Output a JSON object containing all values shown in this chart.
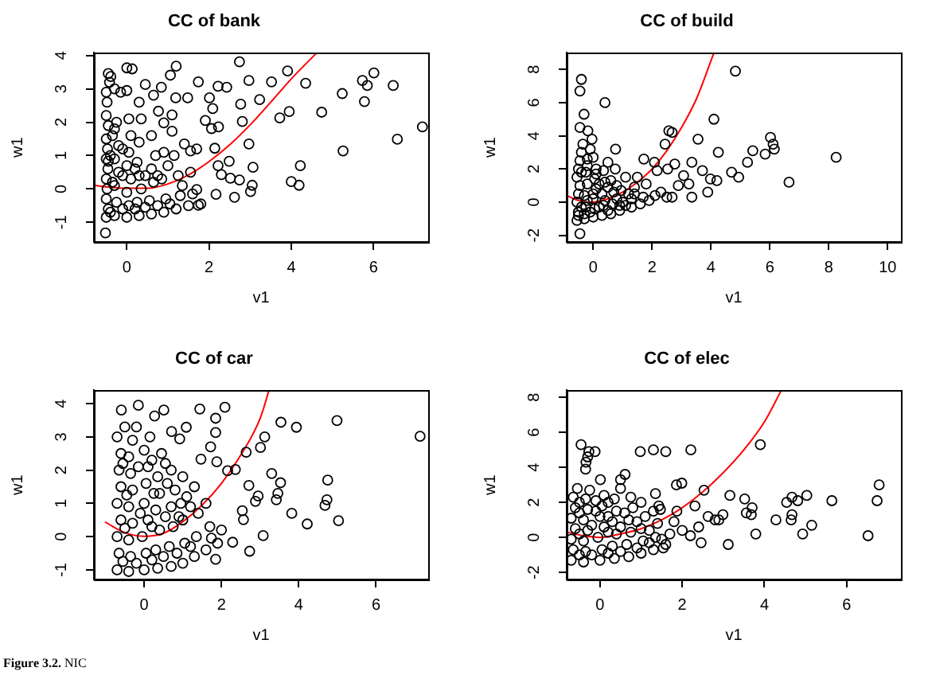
{
  "chart_data": [
    {
      "type": "scatter",
      "title": "CC of bank",
      "xlabel": "v1",
      "ylabel": "w1",
      "xlim": [
        -0.8,
        7.33
      ],
      "ylim": [
        -1.59,
        4.08
      ],
      "xticks": [
        0,
        2,
        4,
        6
      ],
      "yticks": [
        -1,
        0,
        1,
        2,
        3,
        4
      ],
      "grid": false,
      "series": [
        {
          "type": "scatter",
          "color": "#000000",
          "marker": "circle",
          "x": [
            7.19,
            6.58,
            6.01,
            5.73,
            5.85,
            5.78,
            6.48,
            5.24,
            5.26,
            4.74,
            4.35,
            3.91,
            3.95,
            3.72,
            4.22,
            4.0,
            4.19,
            3.52,
            3.23,
            2.97,
            2.74,
            2.77,
            2.81,
            2.97,
            3.07,
            3.05,
            3.01,
            2.62,
            2.74,
            2.49,
            2.52,
            2.3,
            2.17,
            2.22,
            2.14,
            2.43,
            2.22,
            2.09,
            2.01,
            1.91,
            2.23,
            2.06,
            1.74,
            1.7,
            1.55,
            1.74,
            1.48,
            1.19,
            1.2,
            1.06,
            1.1,
            0.84,
            1.1,
            0.77,
            0.9,
            0.65,
            0.45,
            0.13,
            0.0,
            -0.39,
            -0.45,
            -0.52,
            -0.45,
            -0.5,
            -0.45,
            -0.5,
            -0.48,
            -0.5,
            -0.46,
            -0.5,
            -0.47,
            -0.5,
            -0.45,
            -0.5,
            -0.48,
            -0.5,
            -0.42,
            -0.3,
            -0.25,
            -0.3,
            -0.2,
            -0.3,
            -0.2,
            -0.3,
            -0.25,
            -0.15,
            -0.3,
            0,
            0.05,
            0,
            0.1,
            0,
            0.05,
            0.1,
            0.05,
            0.0,
            0.3,
            0.25,
            0.35,
            0.3,
            0.25,
            0.3,
            0.35,
            0.3,
            0.6,
            0.55,
            0.65,
            0.6,
            0.7,
            0.6,
            0.9,
            0.95,
            0.85,
            1.0,
            0.9,
            1.2,
            1.3,
            1.25,
            1.15,
            1.4,
            1.5,
            1.6,
            1.55,
            1.7,
            1.8,
            -0.4,
            -0.35,
            -0.4,
            -0.1,
            -0.1,
            -0.1,
            0.2,
            0.2,
            0.45,
            0.45,
            0.75,
            0.75,
            1.05,
            1.35,
            -0.35
          ],
          "values": [
            1.86,
            1.49,
            3.48,
            3.25,
            3.1,
            2.62,
            3.1,
            2.86,
            1.14,
            2.3,
            3.17,
            3.54,
            2.32,
            2.13,
            0.7,
            0.22,
            0.11,
            3.21,
            2.68,
            3.25,
            3.81,
            2.54,
            2.02,
            1.35,
            0.65,
            0.11,
            -0.08,
            -0.25,
            0.27,
            0.83,
            0.32,
            0.43,
            -0.16,
            0.7,
            1.22,
            3.05,
            3.08,
            2.41,
            2.73,
            2.05,
            1.86,
            1.81,
            -0.49,
            -0.02,
            1.14,
            3.21,
            2.73,
            2.73,
            3.68,
            3.41,
            2.22,
            3.05,
            1.73,
            2.33,
            1.98,
            2.81,
            3.13,
            3.6,
            3.63,
            3.37,
            3.46,
            -1.32,
            0.83,
            -0.85,
            -0.6,
            -0.3,
            0.0,
            0.3,
            0.6,
            0.9,
            1.2,
            1.5,
            1.9,
            2.2,
            2.6,
            2.9,
            3.2,
            -0.8,
            -0.4,
            0.1,
            0.5,
            0.9,
            1.3,
            1.8,
            2.0,
            2.9,
            3.0,
            -0.85,
            -0.5,
            -0.1,
            0.3,
            0.7,
            1.1,
            1.6,
            2.1,
            2.95,
            -0.8,
            -0.4,
            0.0,
            0.4,
            0.8,
            1.4,
            2.1,
            2.6,
            -0.75,
            -0.35,
            0.2,
            0.6,
            1.0,
            1.6,
            -0.7,
            -0.3,
            0.3,
            0.7,
            1.1,
            -0.6,
            -0.2,
            0.4,
            1.0,
            1.35,
            -0.5,
            -0.15,
            0.5,
            1.2,
            -0.45,
            -0.7,
            0.2,
            1.0,
            -0.6,
            0.4,
            1.2,
            -0.6,
            0.6,
            -0.55,
            0.4,
            -0.5,
            0.4,
            -0.45,
            0.1,
            1.6
          ]
        },
        {
          "type": "line",
          "color": "#ff0000",
          "marker": "none",
          "line_style": "solid",
          "x": [
            -0.8,
            -0.4,
            0,
            0.5,
            1,
            1.5,
            2,
            2.5,
            3,
            3.5,
            4,
            4.62
          ],
          "values": [
            0.11,
            0.05,
            0.02,
            0.02,
            0.15,
            0.42,
            0.82,
            1.32,
            1.92,
            2.6,
            3.3,
            4.08
          ]
        }
      ]
    },
    {
      "type": "scatter",
      "title": "CC of build",
      "xlabel": "v1",
      "ylabel": "w1",
      "xlim": [
        -0.9,
        10.45
      ],
      "ylim": [
        -2.4,
        9.0
      ],
      "xticks": [
        0,
        2,
        4,
        6,
        8,
        10
      ],
      "yticks": [
        -2,
        0,
        2,
        4,
        6,
        8
      ],
      "grid": false,
      "series": [
        {
          "type": "scatter",
          "color": "#000000",
          "marker": "circle",
          "x": [
            4.83,
            8.25,
            6.65,
            6.02,
            6.11,
            6.15,
            5.84,
            5.42,
            5.24,
            4.94,
            4.7,
            4.25,
            4.1,
            4.2,
            3.98,
            3.89,
            3.56,
            3.71,
            3.35,
            3.35,
            3.07,
            3.25,
            2.77,
            2.68,
            2.57,
            2.44,
            2.68,
            2.53,
            2.89,
            2.17,
            2.08,
            1.72,
            0.76,
            0.4,
            -0.4,
            -0.45,
            -0.31,
            -0.45,
            -0.18,
            -0.04,
            -0.45,
            -0.55,
            -0.5,
            -0.55,
            -0.5,
            -0.45,
            -0.55,
            -0.5,
            -0.45,
            -0.4,
            -0.35,
            -0.3,
            -0.25,
            -0.3,
            -0.2,
            -0.25,
            -0.2,
            -0.1,
            0,
            0.05,
            0,
            0.1,
            0.05,
            0.1,
            0.0,
            0.3,
            0.35,
            0.3,
            0.4,
            0.35,
            0.5,
            0.6,
            0.65,
            0.7,
            0.6,
            0.75,
            0.9,
            1.0,
            0.95,
            1.1,
            1.3,
            1.3,
            1.4,
            1.5,
            1.6,
            1.7,
            1.9,
            2.1,
            2.3,
            2.5,
            1.8,
            -0.5,
            -0.4,
            -0.3,
            -0.2,
            -0.1,
            0.0,
            0.2,
            0.2,
            0.4,
            0.5,
            0.8,
            0.8,
            1.1,
            1.2,
            -0.4,
            -0.2,
            0.1,
            0.5,
            0.9,
            1.4
          ],
          "values": [
            7.9,
            2.7,
            1.2,
            3.9,
            3.5,
            3.2,
            2.9,
            3.1,
            2.4,
            1.5,
            1.8,
            3.0,
            5.0,
            1.3,
            1.4,
            0.6,
            3.8,
            1.9,
            2.4,
            0.3,
            1.6,
            1.1,
            2.3,
            4.2,
            4.3,
            3.5,
            0.3,
            2.0,
            1.0,
            1.9,
            2.4,
            2.6,
            3.2,
            6.0,
            7.4,
            6.7,
            5.3,
            4.5,
            4.3,
            3.8,
            -1.9,
            -1.1,
            -0.6,
            0.0,
            0.5,
            1.0,
            1.5,
            2.0,
            2.5,
            3.0,
            3.5,
            -1.0,
            -0.3,
            0.4,
            1.1,
            1.8,
            2.6,
            3.2,
            -0.9,
            -0.4,
            0.2,
            0.8,
            1.4,
            2.0,
            2.7,
            -0.8,
            -0.2,
            0.5,
            1.2,
            1.9,
            2.4,
            -0.7,
            -0.1,
            0.6,
            1.3,
            2.0,
            -0.5,
            0.0,
            0.7,
            1.5,
            -0.3,
            0.2,
            0.9,
            1.5,
            -0.1,
            0.3,
            0.1,
            0.4,
            0.6,
            0.3,
            1.1,
            -0.8,
            -0.3,
            -0.7,
            0.1,
            -0.6,
            0.5,
            -0.3,
            1.1,
            0.1,
            -0.5,
            0.2,
            1.0,
            -0.2,
            0.5,
            1.8,
            2.2,
            1.7,
            0.9,
            -0.2,
            0.5
          ]
        },
        {
          "type": "line",
          "color": "#ff0000",
          "marker": "none",
          "line_style": "solid",
          "x": [
            -0.9,
            -0.5,
            0,
            0.5,
            1,
            1.5,
            2,
            2.5,
            3,
            3.5,
            4.1
          ],
          "values": [
            0.4,
            0.1,
            0.0,
            0.2,
            0.6,
            1.2,
            2.0,
            3.1,
            4.5,
            6.2,
            9.0
          ]
        }
      ]
    },
    {
      "type": "scatter",
      "title": "CC of car",
      "xlabel": "v1",
      "ylabel": "w1",
      "xlim": [
        -1.3,
        7.35
      ],
      "ylim": [
        -1.29,
        4.4
      ],
      "xticks": [
        0,
        2,
        4,
        6
      ],
      "yticks": [
        -1,
        0,
        1,
        2,
        3,
        4
      ],
      "grid": false,
      "annotations": [
        "Figure 3.2. NIC"
      ],
      "series": [
        {
          "type": "scatter",
          "color": "#000000",
          "marker": "circle",
          "x": [
            7.14,
            4.99,
            5.03,
            4.75,
            4.73,
            4.68,
            4.22,
            3.82,
            3.94,
            3.54,
            3.53,
            3.46,
            3.42,
            3.3,
            3.12,
            3.01,
            3.08,
            2.95,
            2.88,
            2.73,
            2.64,
            2.57,
            2.71,
            2.54,
            2.36,
            2.09,
            1.85,
            1.85,
            1.85,
            1.44,
            1.09,
            -0.15,
            -0.59,
            0.27,
            0.51,
            0.71,
            0.92,
            1.47,
            1.72,
            1.88,
            2.16,
            2.29,
            1.74,
            -0.7,
            -0.65,
            -0.7,
            -0.6,
            -0.7,
            -0.6,
            -0.65,
            -0.6,
            -0.7,
            -0.5,
            -0.4,
            -0.35,
            -0.4,
            -0.3,
            -0.4,
            -0.3,
            -0.35,
            -0.4,
            -0.3,
            -0.2,
            0,
            0.05,
            -0.05,
            0.1,
            0,
            0.05,
            0.1,
            0,
            0.15,
            0.35,
            0.3,
            0.4,
            0.3,
            0.4,
            0.35,
            0.45,
            0.7,
            0.65,
            0.75,
            0.7,
            0.8,
            0.7,
            1.0,
            1.05,
            1.0,
            1.1,
            1.0,
            1.3,
            1.35,
            1.4,
            1.3,
            1.6,
            1.7,
            1.6,
            1.9,
            2.0,
            -0.55,
            -0.5,
            -0.45,
            -0.2,
            -0.1,
            0.2,
            0.2,
            0.25,
            0.5,
            0.55,
            0.6,
            0.85,
            0.9,
            1.2,
            -0.55,
            -0.15,
            0.2,
            0.55,
            0.95,
            1.2
          ],
          "values": [
            3.02,
            3.49,
            0.48,
            1.7,
            1.11,
            0.94,
            0.38,
            0.7,
            3.29,
            3.44,
            1.62,
            1.3,
            1.11,
            1.9,
            3.0,
            2.68,
            0.03,
            1.22,
            1.06,
            -0.44,
            2.54,
            0.51,
            1.54,
            0.78,
            2.02,
            3.89,
            3.56,
            3.13,
            -0.68,
            3.84,
            3.29,
            3.95,
            3.81,
            3.63,
            3.81,
            3.16,
            2.94,
            2.33,
            2.7,
            2.25,
            1.98,
            -0.17,
            -0.05,
            -1.0,
            -0.5,
            0.0,
            0.5,
            1.0,
            1.5,
            2.0,
            2.5,
            3.0,
            3.3,
            -1.05,
            -0.6,
            -0.1,
            0.4,
            0.9,
            1.4,
            1.9,
            2.4,
            2.9,
            3.3,
            -1.0,
            -0.5,
            0.0,
            0.5,
            1.0,
            1.6,
            2.1,
            2.6,
            3.0,
            -0.95,
            -0.4,
            0.2,
            0.8,
            1.3,
            1.8,
            2.5,
            -0.9,
            -0.3,
            0.3,
            0.9,
            1.4,
            2.0,
            -0.8,
            -0.2,
            0.5,
            1.2,
            1.8,
            -0.6,
            0.0,
            0.7,
            1.5,
            -0.4,
            0.3,
            1.0,
            -0.2,
            0.2,
            -0.75,
            0.25,
            1.25,
            -0.8,
            0.7,
            -0.7,
            0.3,
            1.3,
            -0.6,
            0.6,
            1.6,
            -0.5,
            0.6,
            -0.3,
            2.2,
            2.1,
            2.3,
            2.2,
            1.0,
            0.9
          ]
        },
        {
          "type": "line",
          "color": "#ff0000",
          "marker": "none",
          "line_style": "solid",
          "x": [
            -1.0,
            -0.5,
            0,
            0.5,
            1,
            1.5,
            2,
            2.5,
            3,
            3.23
          ],
          "values": [
            0.43,
            0.12,
            0.01,
            0.1,
            0.45,
            0.95,
            1.6,
            2.45,
            3.55,
            4.4
          ]
        }
      ]
    },
    {
      "type": "scatter",
      "title": "CC of elec",
      "xlabel": "v1",
      "ylabel": "w1",
      "xlim": [
        -0.81,
        7.32
      ],
      "ylim": [
        -2.4,
        8.4
      ],
      "xticks": [
        0,
        2,
        4,
        6
      ],
      "yticks": [
        -2,
        0,
        2,
        4,
        6,
        8
      ],
      "grid": false,
      "series": [
        {
          "type": "scatter",
          "color": "#000000",
          "marker": "circle",
          "x": [
            6.79,
            6.74,
            6.52,
            5.64,
            5.15,
            5.03,
            4.93,
            4.81,
            4.67,
            4.67,
            4.65,
            4.54,
            4.28,
            3.9,
            3.79,
            3.7,
            3.68,
            3.56,
            3.52,
            3.16,
            3.12,
            2.99,
            2.89,
            2.8,
            2.63,
            2.53,
            2.46,
            2.21,
            2.31,
            1.99,
            1.86,
            1.6,
            1.3,
            0.98,
            1.87,
            1.47,
            0.61,
            0.5,
            0.01,
            -0.46,
            -0.27,
            -0.12,
            -0.3,
            -0.34,
            -0.35,
            1.43,
            1.54,
            -0.7,
            -0.65,
            -0.7,
            -0.6,
            -0.7,
            -0.6,
            -0.65,
            -0.55,
            -0.4,
            -0.35,
            -0.4,
            -0.3,
            -0.4,
            -0.3,
            -0.35,
            -0.25,
            0,
            0.05,
            -0.05,
            0.1,
            0,
            0.05,
            0.1,
            0.35,
            0.3,
            0.4,
            0.3,
            0.4,
            0.35,
            0.5,
            0.7,
            0.65,
            0.75,
            0.7,
            0.8,
            0.75,
            1.0,
            1.05,
            1.0,
            1.1,
            1.0,
            1.3,
            1.35,
            1.4,
            1.3,
            1.35,
            1.6,
            1.7,
            1.8,
            2.0,
            2.2,
            2.4,
            -0.5,
            -0.5,
            -0.5,
            -0.2,
            -0.2,
            -0.1,
            0.2,
            0.2,
            0.2,
            0.5,
            0.5,
            0.9,
            0.9,
            1.2,
            1.2,
            -0.5,
            -0.1,
            0.2,
            0.6,
            1.5
          ],
          "values": [
            3.0,
            2.1,
            0.1,
            2.1,
            0.7,
            2.4,
            0.2,
            2.1,
            2.3,
            1.3,
            1.0,
            2.0,
            1.0,
            5.3,
            0.2,
            1.7,
            1.3,
            1.4,
            2.2,
            2.4,
            -0.4,
            1.3,
            1.0,
            1.0,
            1.2,
            2.7,
            -0.3,
            5.0,
            1.8,
            3.1,
            3.0,
            4.9,
            5.0,
            4.9,
            1.5,
            1.6,
            3.6,
            3.3,
            3.3,
            5.3,
            4.9,
            4.9,
            4.6,
            4.3,
            3.9,
            1.8,
            -0.6,
            -1.3,
            -0.7,
            -0.1,
            0.5,
            1.1,
            1.7,
            2.3,
            2.8,
            -1.4,
            -0.8,
            -0.2,
            0.4,
            1.0,
            1.6,
            2.2,
            2.7,
            -1.3,
            -0.7,
            0.0,
            0.6,
            1.2,
            1.8,
            2.4,
            -1.2,
            -0.5,
            0.2,
            0.9,
            1.5,
            2.2,
            2.8,
            -1.1,
            -0.4,
            0.3,
            1.0,
            1.7,
            2.3,
            -0.9,
            -0.2,
            0.5,
            1.2,
            2.0,
            -0.7,
            0.0,
            0.8,
            1.5,
            2.5,
            -0.4,
            0.2,
            0.9,
            0.4,
            0.1,
            0.6,
            -1.0,
            0.2,
            1.4,
            -1.0,
            0.7,
            1.5,
            -0.9,
            0.3,
            1.2,
            -0.8,
            0.6,
            -0.6,
            0.9,
            -0.3,
            0.4,
            2.0,
            2.1,
            2.0,
            1.4,
            -0.1
          ]
        },
        {
          "type": "line",
          "color": "#ff0000",
          "marker": "none",
          "line_style": "solid",
          "x": [
            -0.81,
            -0.4,
            0,
            0.5,
            1,
            1.5,
            2,
            2.5,
            3,
            3.5,
            4,
            4.41
          ],
          "values": [
            0.3,
            0.1,
            0.0,
            0.2,
            0.5,
            1.0,
            1.7,
            2.6,
            3.7,
            5.0,
            6.6,
            8.4
          ]
        }
      ]
    }
  ]
}
